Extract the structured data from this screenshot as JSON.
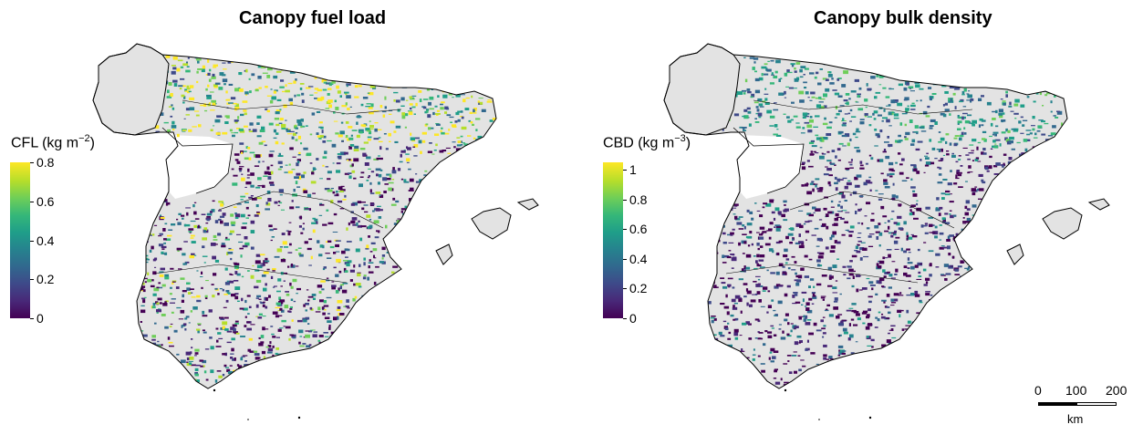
{
  "panels": [
    {
      "title": "Canopy fuel load",
      "legend_title": "CFL (kg m",
      "legend_exp": "−2",
      "legend_close": ")",
      "ticks": [
        "0.8",
        "0.6",
        "0.4",
        "0.2",
        "0"
      ],
      "scale_max": 0.8
    },
    {
      "title": "Canopy bulk density",
      "legend_title": "CBD (kg m",
      "legend_exp": "−3",
      "legend_close": ")",
      "ticks": [
        "1",
        "0.8",
        "0.6",
        "0.4",
        "0.2",
        "0"
      ],
      "scale_max": 1.05
    }
  ],
  "scalebar": {
    "labels": [
      "0",
      "100",
      "200"
    ],
    "unit": "km"
  },
  "colors": {
    "landmass": "#e3e3e3",
    "outline": "#000000",
    "viridis": [
      "#440154",
      "#482878",
      "#3e4989",
      "#31688e",
      "#26828e",
      "#1f9e89",
      "#35b779",
      "#6ece58",
      "#b5de2b",
      "#fde725"
    ]
  }
}
